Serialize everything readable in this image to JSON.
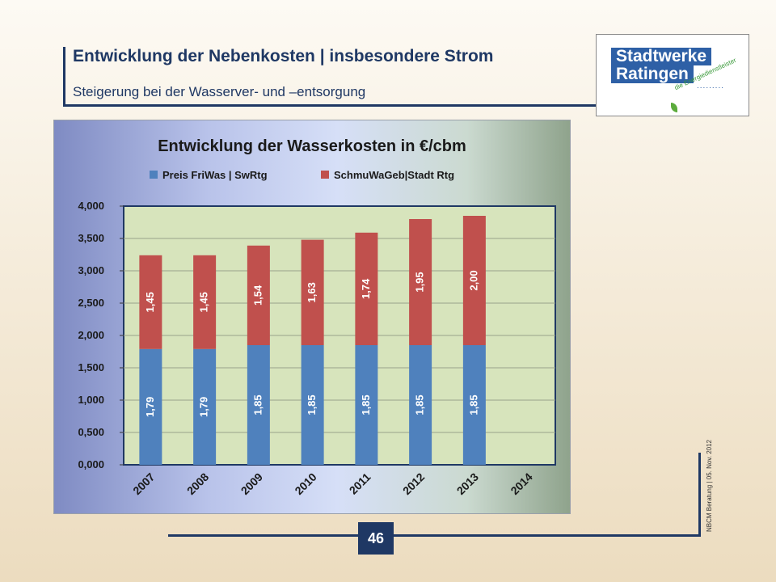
{
  "slide": {
    "title": "Entwicklung der Nebenkosten | insbesondere Strom",
    "subtitle": "Steigerung bei der Wasserver- und –entsorgung",
    "page_number": "46",
    "footer_note": "NBCM Beratung | 05. Nov. 2012"
  },
  "logo": {
    "line1": "Stadtwerke",
    "line2": "Ratingen",
    "tagline": "die Energiedienstleister",
    "colors": {
      "primary": "#2e60a6",
      "accent": "#5cab3c"
    }
  },
  "chart_data": {
    "type": "bar",
    "stacked": true,
    "title": "Entwicklung der Wasserkosten in €/cbm",
    "categories": [
      "2007",
      "2008",
      "2009",
      "2010",
      "2011",
      "2012",
      "2013",
      "2014"
    ],
    "series": [
      {
        "name": "Preis FriWas | SwRtg",
        "color": "#4f81bd",
        "values": [
          1.79,
          1.79,
          1.85,
          1.85,
          1.85,
          1.85,
          1.85,
          null
        ],
        "labels": [
          "1,79",
          "1,79",
          "1,85",
          "1,85",
          "1,85",
          "1,85",
          "1,85",
          ""
        ]
      },
      {
        "name": "SchmuWaGeb|Stadt Rtg",
        "color": "#c0504d",
        "values": [
          1.45,
          1.45,
          1.54,
          1.63,
          1.74,
          1.95,
          2.0,
          null
        ],
        "labels": [
          "1,45",
          "1,45",
          "1,54",
          "1,63",
          "1,74",
          "1,95",
          "2,00",
          ""
        ]
      }
    ],
    "ylim": [
      0,
      4
    ],
    "yticks": [
      0,
      0.5,
      1,
      1.5,
      2,
      2.5,
      3,
      3.5,
      4
    ],
    "ytick_labels": [
      "0,000",
      "0,500",
      "1,000",
      "1,500",
      "2,000",
      "2,500",
      "3,000",
      "3,500",
      "4,000"
    ],
    "grid": true,
    "legend_position": "top",
    "plot_background": "#d7e4bc"
  }
}
